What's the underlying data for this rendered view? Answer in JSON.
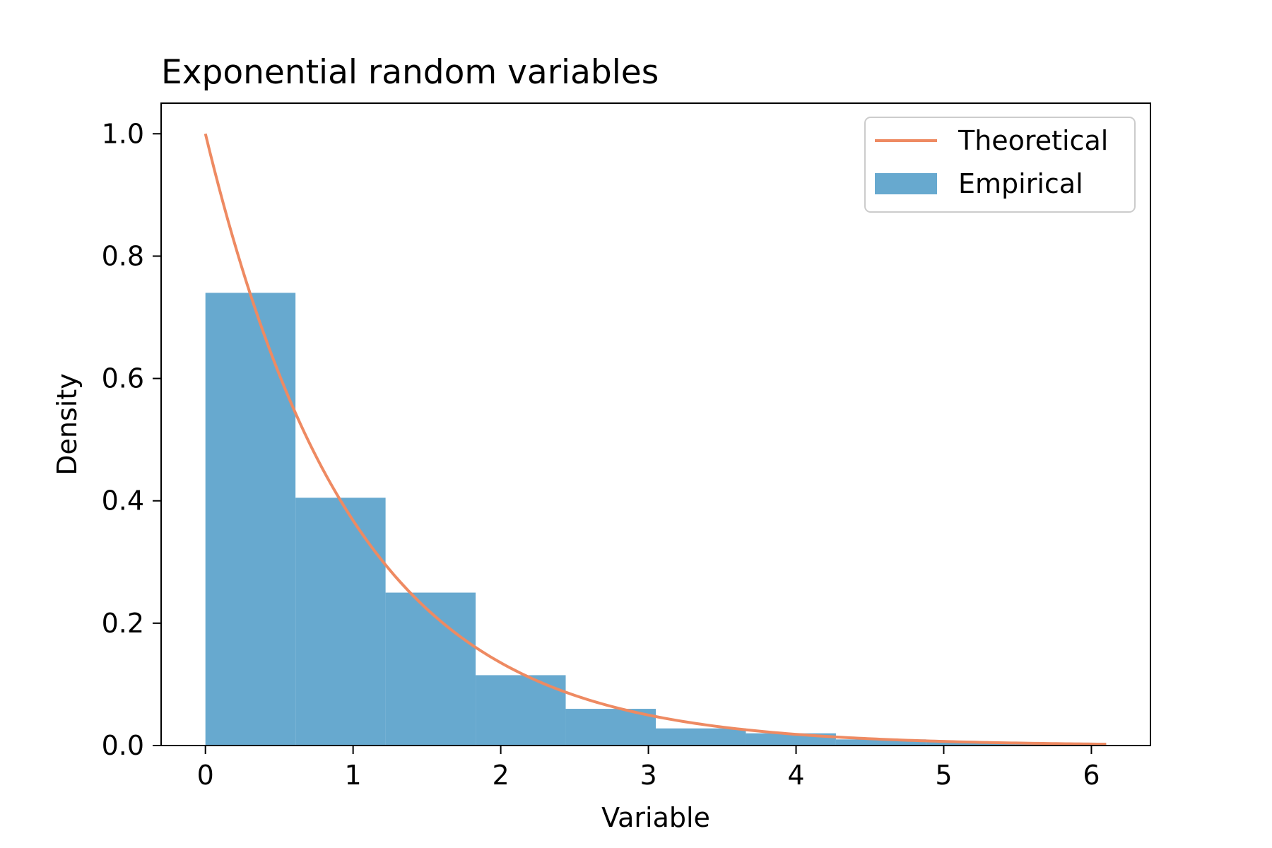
{
  "chart_data": {
    "type": "bar",
    "title": "Exponential random variables",
    "xlabel": "Variable",
    "ylabel": "Density",
    "xlim": [
      -0.3,
      6.4
    ],
    "ylim": [
      0,
      1.05
    ],
    "xticks": [
      0,
      1,
      2,
      3,
      4,
      5,
      6
    ],
    "yticks": [
      0.0,
      0.2,
      0.4,
      0.6,
      0.8,
      1.0
    ],
    "xtick_labels": [
      "0",
      "1",
      "2",
      "3",
      "4",
      "5",
      "6"
    ],
    "ytick_labels": [
      "0.0",
      "0.2",
      "0.4",
      "0.6",
      "0.8",
      "1.0"
    ],
    "grid": false,
    "legend_position": "top-right",
    "series": [
      {
        "name": "Theoretical",
        "type": "line",
        "color": "#ee8a62",
        "function": "exp(-x)",
        "x_range": [
          0,
          6.1
        ]
      },
      {
        "name": "Empirical",
        "type": "histogram",
        "color": "#67a9cf",
        "bin_edges": [
          0,
          0.61,
          1.22,
          1.83,
          2.44,
          3.05,
          3.66,
          4.27,
          4.88,
          5.49,
          6.1
        ],
        "values": [
          0.74,
          0.405,
          0.25,
          0.115,
          0.06,
          0.028,
          0.02,
          0.01,
          0.006,
          0.004
        ]
      }
    ]
  }
}
